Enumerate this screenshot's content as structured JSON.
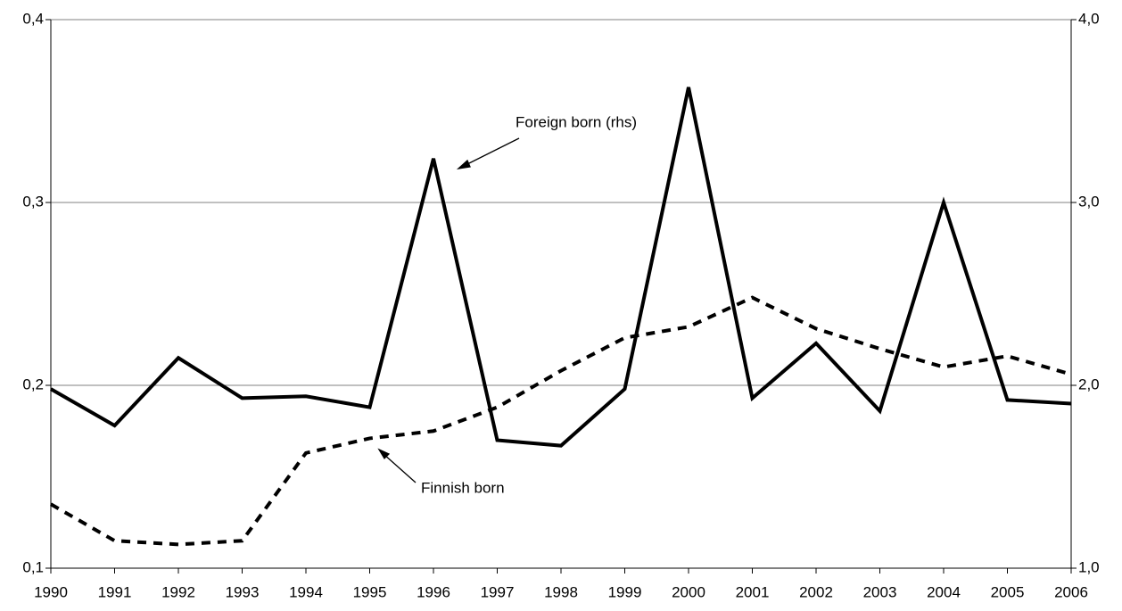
{
  "chart_data": {
    "type": "line",
    "categories": [
      "1990",
      "1991",
      "1992",
      "1993",
      "1994",
      "1995",
      "1996",
      "1997",
      "1998",
      "1999",
      "2000",
      "2001",
      "2002",
      "2003",
      "2004",
      "2005",
      "2006"
    ],
    "ylim": [
      0.1,
      0.4
    ],
    "yticks": [
      {
        "value": 0.1,
        "label": "0,1"
      },
      {
        "value": 0.2,
        "label": "0,2"
      },
      {
        "value": 0.3,
        "label": "0,3"
      },
      {
        "value": 0.4,
        "label": "0,4"
      }
    ],
    "y2lim": [
      1.0,
      4.0
    ],
    "y2ticks": [
      {
        "value": 1.0,
        "label": "1,0"
      },
      {
        "value": 2.0,
        "label": "2,0"
      },
      {
        "value": 3.0,
        "label": "3,0"
      },
      {
        "value": 4.0,
        "label": "4,0"
      }
    ],
    "grid": true,
    "series": [
      {
        "name": "Foreign born (rhs)",
        "color": "#000000",
        "dashed": false,
        "axis": "y2",
        "values": [
          1.98,
          1.78,
          2.15,
          1.93,
          1.94,
          1.88,
          3.24,
          1.7,
          1.67,
          1.98,
          3.63,
          1.93,
          2.23,
          1.86,
          3.0,
          1.92,
          1.9
        ]
      },
      {
        "name": "Finnish born",
        "color": "#000000",
        "dashed": true,
        "axis": "y",
        "values": [
          0.135,
          0.115,
          0.113,
          0.115,
          0.163,
          0.171,
          0.175,
          0.188,
          0.208,
          0.226,
          0.232,
          0.248,
          0.231,
          0.22,
          0.21,
          0.216,
          0.206
        ]
      }
    ]
  }
}
